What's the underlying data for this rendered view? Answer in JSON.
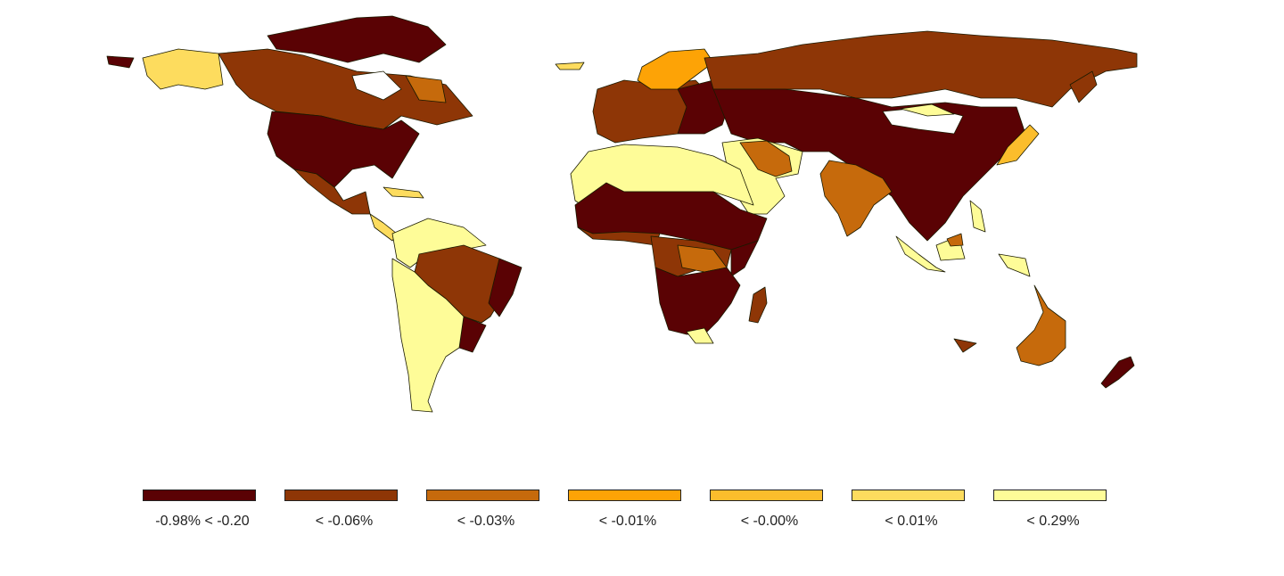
{
  "map": {
    "type": "choropleth",
    "background_color": "#ffffff",
    "no_data_color": "#ffffff",
    "border_color": "#1a1a00"
  },
  "legend": {
    "placement": "bottom",
    "classes": [
      {
        "label": "-0.98% < -0.20",
        "color": "#5a0204"
      },
      {
        "label": "< -0.06%",
        "color": "#8e3606"
      },
      {
        "label": "< -0.03%",
        "color": "#c66a0c"
      },
      {
        "label": "< -0.01%",
        "color": "#fda306"
      },
      {
        "label": "< -0.00%",
        "color": "#fbbd2c"
      },
      {
        "label": "< 0.01%",
        "color": "#fddc5e"
      },
      {
        "label": "< 0.29%",
        "color": "#fefc98"
      }
    ]
  }
}
